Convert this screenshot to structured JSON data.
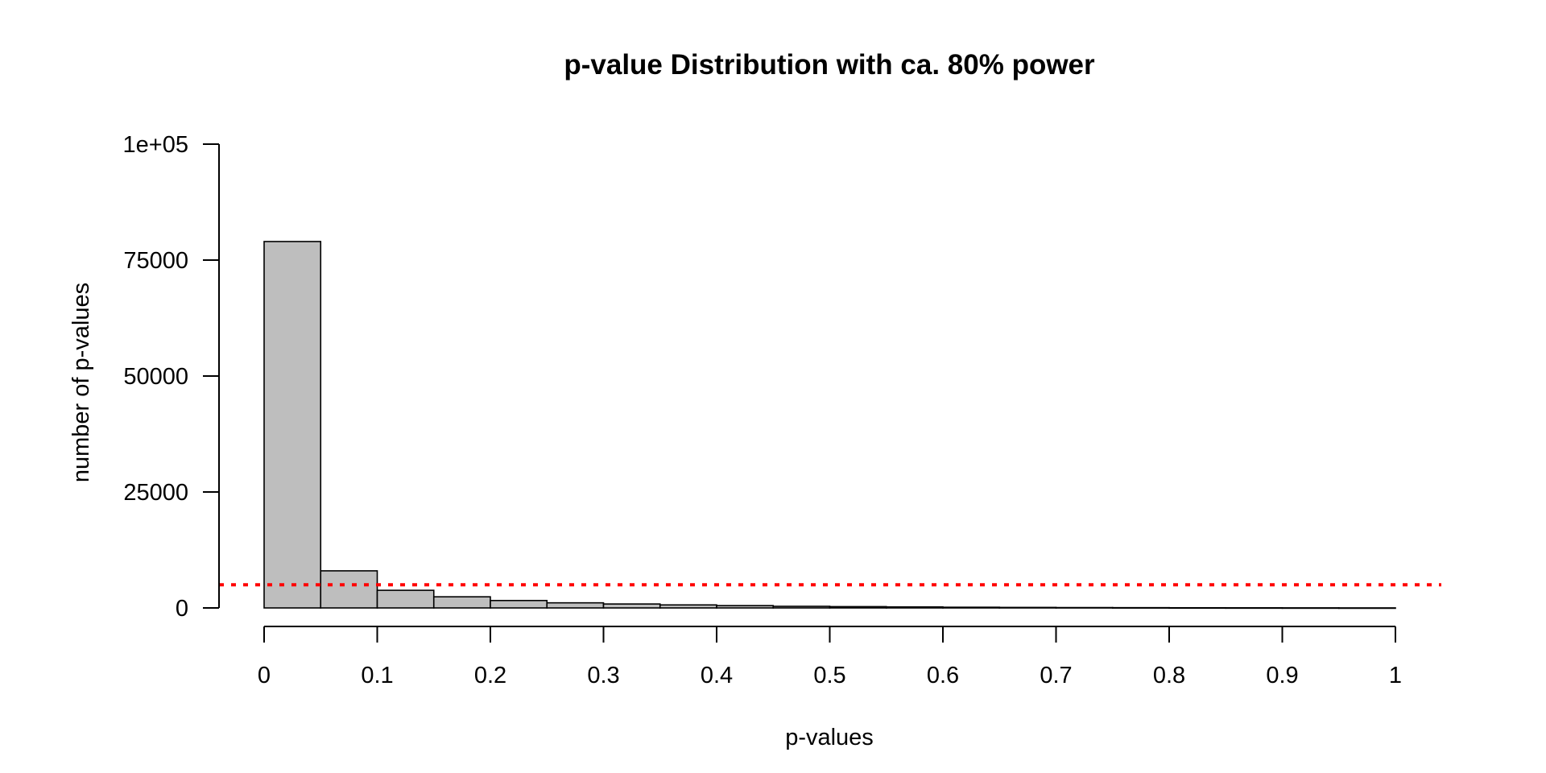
{
  "chart_data": {
    "type": "bar",
    "title": "p-value Distribution with ca. 80% power",
    "xlabel": "p-values",
    "ylabel": "number of p-values",
    "xlim": [
      0,
      1
    ],
    "ylim": [
      0,
      100000
    ],
    "bin_width": 0.05,
    "bins": [
      {
        "x0": 0.0,
        "x1": 0.05,
        "count": 79000
      },
      {
        "x0": 0.05,
        "x1": 0.1,
        "count": 8000
      },
      {
        "x0": 0.1,
        "x1": 0.15,
        "count": 3800
      },
      {
        "x0": 0.15,
        "x1": 0.2,
        "count": 2400
      },
      {
        "x0": 0.2,
        "x1": 0.25,
        "count": 1600
      },
      {
        "x0": 0.25,
        "x1": 0.3,
        "count": 1100
      },
      {
        "x0": 0.3,
        "x1": 0.35,
        "count": 850
      },
      {
        "x0": 0.35,
        "x1": 0.4,
        "count": 650
      },
      {
        "x0": 0.4,
        "x1": 0.45,
        "count": 500
      },
      {
        "x0": 0.45,
        "x1": 0.5,
        "count": 350
      },
      {
        "x0": 0.5,
        "x1": 0.55,
        "count": 280
      },
      {
        "x0": 0.55,
        "x1": 0.6,
        "count": 220
      },
      {
        "x0": 0.6,
        "x1": 0.65,
        "count": 150
      },
      {
        "x0": 0.65,
        "x1": 0.7,
        "count": 110
      },
      {
        "x0": 0.7,
        "x1": 0.75,
        "count": 80
      },
      {
        "x0": 0.75,
        "x1": 0.8,
        "count": 60
      },
      {
        "x0": 0.8,
        "x1": 0.85,
        "count": 40
      },
      {
        "x0": 0.85,
        "x1": 0.9,
        "count": 30
      },
      {
        "x0": 0.9,
        "x1": 0.95,
        "count": 20
      },
      {
        "x0": 0.95,
        "x1": 1.0,
        "count": 10
      }
    ],
    "x_ticks": [
      {
        "value": 0,
        "label": "0"
      },
      {
        "value": 0.1,
        "label": "0.1"
      },
      {
        "value": 0.2,
        "label": "0.2"
      },
      {
        "value": 0.3,
        "label": "0.3"
      },
      {
        "value": 0.4,
        "label": "0.4"
      },
      {
        "value": 0.5,
        "label": "0.5"
      },
      {
        "value": 0.6,
        "label": "0.6"
      },
      {
        "value": 0.7,
        "label": "0.7"
      },
      {
        "value": 0.8,
        "label": "0.8"
      },
      {
        "value": 0.9,
        "label": "0.9"
      },
      {
        "value": 1,
        "label": "1"
      }
    ],
    "y_ticks": [
      {
        "value": 0,
        "label": "0"
      },
      {
        "value": 25000,
        "label": "25000"
      },
      {
        "value": 50000,
        "label": "50000"
      },
      {
        "value": 75000,
        "label": "75000"
      },
      {
        "value": 100000,
        "label": "1e+05"
      }
    ],
    "reference_line": {
      "y": 5000,
      "style": "dotted",
      "color": "#ff0000"
    },
    "bar_fill": "#bebebe",
    "grid": false,
    "legend": "none"
  }
}
